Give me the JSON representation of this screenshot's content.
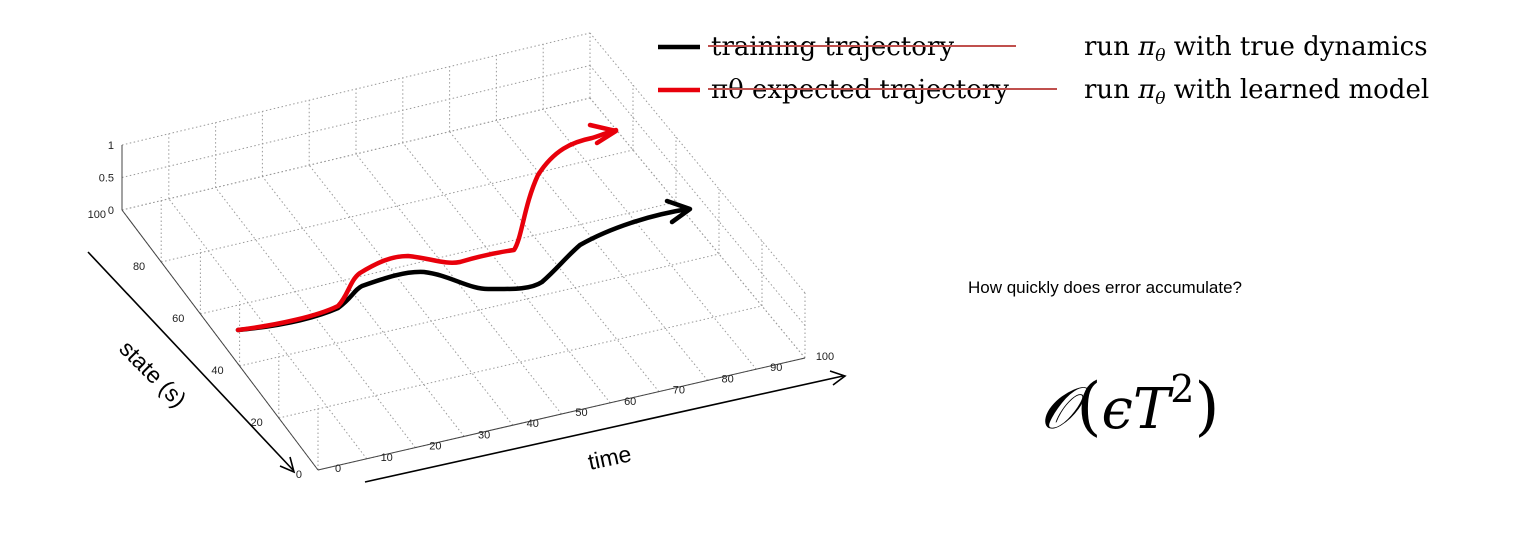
{
  "legend": {
    "items": [
      {
        "label": "training trajectory",
        "color": "#000000",
        "struck": true
      },
      {
        "label": "πθ expected trajectory",
        "color": "#e8000b",
        "struck": true
      }
    ],
    "strike_color": "#c0504d",
    "notes": [
      {
        "prefix": "run ",
        "pi": "π",
        "theta": "θ",
        "suffix": " with true dynamics"
      },
      {
        "prefix": "run ",
        "pi": "π",
        "theta": "θ",
        "suffix": " with learned model"
      }
    ]
  },
  "plot": {
    "z_ticks": [
      "0",
      "0.5",
      "1"
    ],
    "state_ticks": [
      "0",
      "20",
      "40",
      "60",
      "80",
      "100"
    ],
    "time_ticks": [
      "0",
      "10",
      "20",
      "30",
      "40",
      "50",
      "60",
      "70",
      "80",
      "90",
      "100"
    ],
    "state_axis_label": "state (s)",
    "time_axis_label": "time",
    "grid": true
  },
  "question": "How quickly does error accumulate?",
  "formula": {
    "O": "𝒪",
    "open": "(",
    "eps": "ϵ",
    "T": "T",
    "exp": "2",
    "close": ")"
  }
}
